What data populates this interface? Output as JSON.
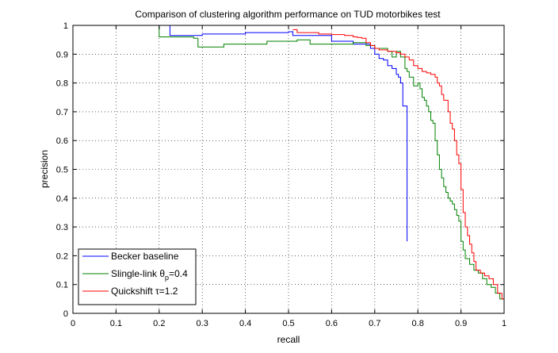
{
  "chart_data": {
    "type": "line",
    "title": "Comparison of clustering algorithm performance on TUD motorbikes test",
    "xlabel": "recall",
    "ylabel": "precision",
    "xlim": [
      0,
      1
    ],
    "ylim": [
      0,
      1
    ],
    "grid": true,
    "legend_position": "bottom-left",
    "xticks": [
      "0",
      "0.1",
      "0.2",
      "0.3",
      "0.4",
      "0.5",
      "0.6",
      "0.7",
      "0.8",
      "0.9",
      "1"
    ],
    "yticks": [
      "0",
      "0.1",
      "0.2",
      "0.3",
      "0.4",
      "0.5",
      "0.6",
      "0.7",
      "0.8",
      "0.9",
      "1"
    ],
    "series": [
      {
        "name": "Becker baseline",
        "legend_main": "Becker baseline",
        "legend_sub": "",
        "legend_tail": "",
        "color": "#0000ff",
        "points": [
          [
            0.225,
            1.0
          ],
          [
            0.225,
            0.965
          ],
          [
            0.3,
            0.97
          ],
          [
            0.4,
            0.975
          ],
          [
            0.5,
            0.978
          ],
          [
            0.51,
            0.98
          ],
          [
            0.51,
            0.965
          ],
          [
            0.55,
            0.965
          ],
          [
            0.6,
            0.945
          ],
          [
            0.65,
            0.935
          ],
          [
            0.69,
            0.92
          ],
          [
            0.7,
            0.9
          ],
          [
            0.71,
            0.885
          ],
          [
            0.72,
            0.88
          ],
          [
            0.73,
            0.86
          ],
          [
            0.74,
            0.85
          ],
          [
            0.75,
            0.83
          ],
          [
            0.755,
            0.82
          ],
          [
            0.76,
            0.8
          ],
          [
            0.765,
            0.72
          ],
          [
            0.77,
            0.72
          ],
          [
            0.775,
            0.48
          ],
          [
            0.775,
            0.25
          ]
        ]
      },
      {
        "name": "Slingle-link θp=0.4",
        "legend_main": "Slingle-link θ",
        "legend_sub": "p",
        "legend_tail": "=0.4",
        "color": "#008000",
        "points": [
          [
            0.2,
            1.0
          ],
          [
            0.2,
            0.96
          ],
          [
            0.28,
            0.955
          ],
          [
            0.29,
            0.925
          ],
          [
            0.35,
            0.935
          ],
          [
            0.45,
            0.945
          ],
          [
            0.52,
            0.95
          ],
          [
            0.55,
            0.935
          ],
          [
            0.6,
            0.935
          ],
          [
            0.65,
            0.94
          ],
          [
            0.68,
            0.93
          ],
          [
            0.7,
            0.92
          ],
          [
            0.73,
            0.91
          ],
          [
            0.74,
            0.89
          ],
          [
            0.75,
            0.91
          ],
          [
            0.76,
            0.89
          ],
          [
            0.77,
            0.85
          ],
          [
            0.775,
            0.84
          ],
          [
            0.78,
            0.82
          ],
          [
            0.79,
            0.79
          ],
          [
            0.8,
            0.8
          ],
          [
            0.805,
            0.78
          ],
          [
            0.81,
            0.75
          ],
          [
            0.815,
            0.74
          ],
          [
            0.82,
            0.72
          ],
          [
            0.825,
            0.7
          ],
          [
            0.83,
            0.67
          ],
          [
            0.835,
            0.66
          ],
          [
            0.84,
            0.6
          ],
          [
            0.845,
            0.55
          ],
          [
            0.85,
            0.5
          ],
          [
            0.855,
            0.47
          ],
          [
            0.86,
            0.44
          ],
          [
            0.865,
            0.42
          ],
          [
            0.87,
            0.4
          ],
          [
            0.875,
            0.39
          ],
          [
            0.88,
            0.38
          ],
          [
            0.885,
            0.36
          ],
          [
            0.89,
            0.34
          ],
          [
            0.895,
            0.32
          ],
          [
            0.9,
            0.25
          ],
          [
            0.905,
            0.22
          ],
          [
            0.91,
            0.19
          ],
          [
            0.92,
            0.17
          ],
          [
            0.93,
            0.15
          ],
          [
            0.94,
            0.14
          ],
          [
            0.95,
            0.12
          ],
          [
            0.96,
            0.1
          ],
          [
            0.97,
            0.09
          ],
          [
            0.98,
            0.07
          ],
          [
            0.99,
            0.05
          ],
          [
            1.0,
            0.04
          ]
        ]
      },
      {
        "name": "Quickshift τ=1.2",
        "legend_main": "Quickshift τ=1.2",
        "legend_sub": "",
        "legend_tail": "",
        "color": "#ff0000",
        "points": [
          [
            0.51,
            0.985
          ],
          [
            0.52,
            0.975
          ],
          [
            0.55,
            0.975
          ],
          [
            0.57,
            0.97
          ],
          [
            0.6,
            0.968
          ],
          [
            0.63,
            0.965
          ],
          [
            0.65,
            0.96
          ],
          [
            0.66,
            0.958
          ],
          [
            0.67,
            0.955
          ],
          [
            0.68,
            0.94
          ],
          [
            0.69,
            0.93
          ],
          [
            0.7,
            0.92
          ],
          [
            0.71,
            0.915
          ],
          [
            0.73,
            0.91
          ],
          [
            0.75,
            0.905
          ],
          [
            0.76,
            0.9
          ],
          [
            0.77,
            0.89
          ],
          [
            0.78,
            0.88
          ],
          [
            0.79,
            0.86
          ],
          [
            0.8,
            0.85
          ],
          [
            0.81,
            0.84
          ],
          [
            0.82,
            0.835
          ],
          [
            0.83,
            0.83
          ],
          [
            0.84,
            0.82
          ],
          [
            0.845,
            0.8
          ],
          [
            0.85,
            0.79
          ],
          [
            0.855,
            0.76
          ],
          [
            0.86,
            0.74
          ],
          [
            0.87,
            0.7
          ],
          [
            0.875,
            0.66
          ],
          [
            0.88,
            0.64
          ],
          [
            0.885,
            0.6
          ],
          [
            0.89,
            0.55
          ],
          [
            0.895,
            0.52
          ],
          [
            0.9,
            0.43
          ],
          [
            0.905,
            0.35
          ],
          [
            0.91,
            0.3
          ],
          [
            0.915,
            0.27
          ],
          [
            0.92,
            0.24
          ],
          [
            0.925,
            0.21
          ],
          [
            0.93,
            0.18
          ],
          [
            0.935,
            0.15
          ],
          [
            0.945,
            0.14
          ],
          [
            0.955,
            0.13
          ],
          [
            0.965,
            0.12
          ],
          [
            0.975,
            0.1
          ],
          [
            0.985,
            0.07
          ],
          [
            0.995,
            0.05
          ],
          [
            1.0,
            0.03
          ]
        ]
      }
    ]
  }
}
